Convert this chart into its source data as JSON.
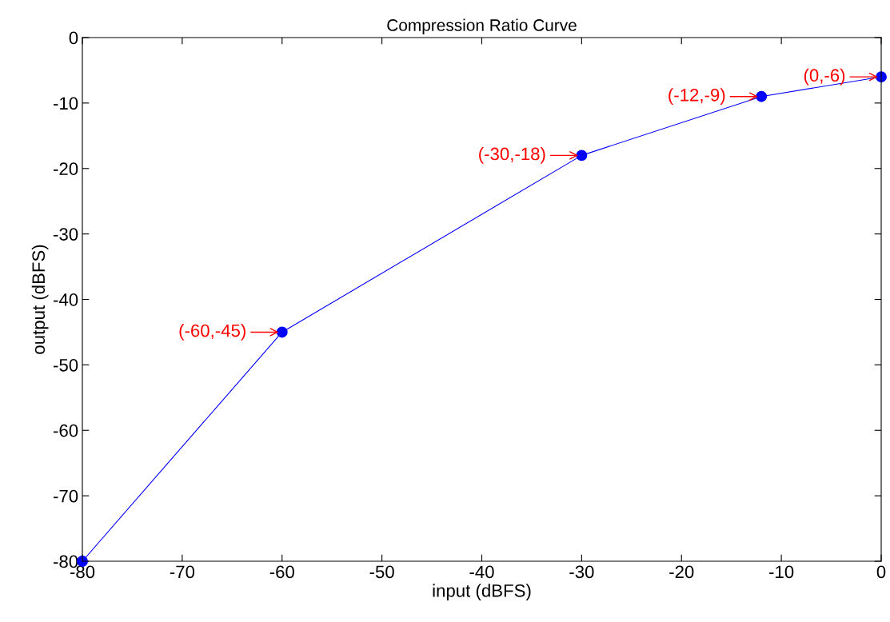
{
  "chart_data": {
    "type": "line",
    "title": "Compression Ratio Curve",
    "xlabel": "input (dBFS)",
    "ylabel": "output (dBFS)",
    "x": [
      -80,
      -60,
      -30,
      -12,
      0
    ],
    "series": [
      {
        "color": "#0000ff",
        "values": [
          -80,
          -45,
          -18,
          -9,
          -6
        ]
      }
    ],
    "marker": "circle",
    "line_style": "solid",
    "grid": false,
    "legend": false,
    "xlim": [
      -80,
      0
    ],
    "ylim": [
      -80,
      0
    ],
    "xticks": [
      -80,
      -70,
      -60,
      -50,
      -40,
      -30,
      -20,
      -10,
      0
    ],
    "yticks": [
      -80,
      -70,
      -60,
      -50,
      -40,
      -30,
      -20,
      -10,
      0
    ],
    "annotations": [
      {
        "text": "(-60,-45)",
        "x": -60,
        "y": -45
      },
      {
        "text": "(-30,-18)",
        "x": -30,
        "y": -18
      },
      {
        "text": "(-12,-9)",
        "x": -12,
        "y": -9
      },
      {
        "text": "(0,-6)",
        "x": 0,
        "y": -6
      }
    ]
  }
}
